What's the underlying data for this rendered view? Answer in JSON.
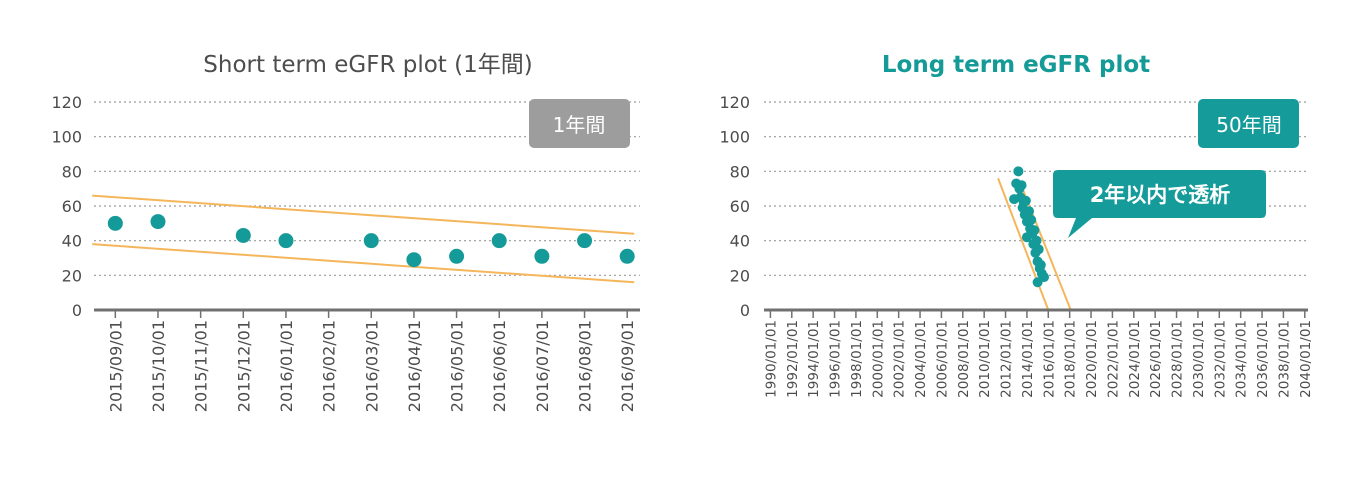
{
  "colors": {
    "point": "#159A9A",
    "trend": "#F5B65B",
    "axis": "#707070",
    "grid": "#9A9A9A",
    "text": "#4D4D4D",
    "title_right": "#149A97",
    "badge_gray": "#9D9D9D",
    "badge_teal": "#169B9B"
  },
  "chart_data": [
    {
      "type": "scatter",
      "title": "Short term eGFR plot (1年間)",
      "badge": "1年間",
      "xlabel": "",
      "ylabel": "",
      "ylim": [
        0,
        120
      ],
      "yticks": [
        "0",
        "20",
        "40",
        "60",
        "80",
        "100",
        "120"
      ],
      "grid": true,
      "x_tick_labels": [
        "2015/09/01",
        "2015/10/01",
        "2015/11/01",
        "2015/12/01",
        "2016/01/01",
        "2016/02/01",
        "2016/03/01",
        "2016/04/01",
        "2016/05/01",
        "2016/06/01",
        "2016/07/01",
        "2016/08/01",
        "2016/09/01"
      ],
      "x_range_months": [
        -0.5,
        12.3
      ],
      "points": [
        {
          "x": "2015/09/01",
          "y": 50
        },
        {
          "x": "2015/10/01",
          "y": 51
        },
        {
          "x": "2015/12/01",
          "y": 43
        },
        {
          "x": "2016/01/01",
          "y": 40
        },
        {
          "x": "2016/03/01",
          "y": 40
        },
        {
          "x": "2016/04/01",
          "y": 29
        },
        {
          "x": "2016/05/01",
          "y": 31
        },
        {
          "x": "2016/06/01",
          "y": 40
        },
        {
          "x": "2016/07/01",
          "y": 31
        },
        {
          "x": "2016/08/01",
          "y": 40
        },
        {
          "x": "2016/09/01",
          "y": 31
        }
      ],
      "trend_lines": [
        {
          "from": {
            "x": "2015/08/15",
            "y": 66
          },
          "to": {
            "x": "2016/09/06",
            "y": 44
          }
        },
        {
          "from": {
            "x": "2015/08/15",
            "y": 38
          },
          "to": {
            "x": "2016/09/06",
            "y": 16
          }
        }
      ]
    },
    {
      "type": "scatter",
      "title": "Long term eGFR plot",
      "badge": "50年間",
      "callout": "2年以内で透析",
      "xlabel": "",
      "ylabel": "",
      "ylim": [
        0,
        120
      ],
      "yticks": [
        "0",
        "20",
        "40",
        "60",
        "80",
        "100",
        "120"
      ],
      "grid": true,
      "x_tick_labels": [
        "1990/01/01",
        "1992/01/01",
        "1994/01/01",
        "1996/01/01",
        "1998/01/01",
        "2000/01/01",
        "2002/01/01",
        "2004/01/01",
        "2006/01/01",
        "2008/01/01",
        "2010/01/01",
        "2012/01/01",
        "2014/01/01",
        "2016/01/01",
        "2018/01/01",
        "2020/01/01",
        "2022/01/01",
        "2024/01/01",
        "2026/01/01",
        "2028/01/01",
        "2030/01/01",
        "2032/01/01",
        "2034/01/01",
        "2036/01/01",
        "2038/01/01",
        "2040/01/01"
      ],
      "x_range_years": [
        1989.4,
        2040.3
      ],
      "points": [
        {
          "x": 2012.8,
          "y": 64
        },
        {
          "x": 2013.0,
          "y": 73
        },
        {
          "x": 2013.2,
          "y": 80
        },
        {
          "x": 2013.3,
          "y": 70
        },
        {
          "x": 2013.4,
          "y": 65
        },
        {
          "x": 2013.5,
          "y": 72
        },
        {
          "x": 2013.6,
          "y": 59
        },
        {
          "x": 2013.7,
          "y": 62
        },
        {
          "x": 2013.8,
          "y": 55
        },
        {
          "x": 2013.9,
          "y": 63
        },
        {
          "x": 2014.0,
          "y": 51
        },
        {
          "x": 2014.0,
          "y": 42
        },
        {
          "x": 2014.2,
          "y": 57
        },
        {
          "x": 2014.3,
          "y": 47
        },
        {
          "x": 2014.4,
          "y": 52
        },
        {
          "x": 2014.5,
          "y": 44
        },
        {
          "x": 2014.6,
          "y": 38
        },
        {
          "x": 2014.7,
          "y": 46
        },
        {
          "x": 2014.8,
          "y": 33
        },
        {
          "x": 2014.9,
          "y": 40
        },
        {
          "x": 2015.0,
          "y": 28
        },
        {
          "x": 2015.1,
          "y": 35
        },
        {
          "x": 2015.2,
          "y": 24
        },
        {
          "x": 2015.3,
          "y": 26
        },
        {
          "x": 2015.4,
          "y": 21
        },
        {
          "x": 2015.6,
          "y": 19
        },
        {
          "x": 2015.0,
          "y": 16
        }
      ],
      "trend_lines": [
        {
          "from": {
            "x": 2011.3,
            "y": 76
          },
          "to": {
            "x": 2016.0,
            "y": 0
          }
        },
        {
          "from": {
            "x": 2013.4,
            "y": 73
          },
          "to": {
            "x": 2018.1,
            "y": 0
          }
        }
      ]
    }
  ]
}
